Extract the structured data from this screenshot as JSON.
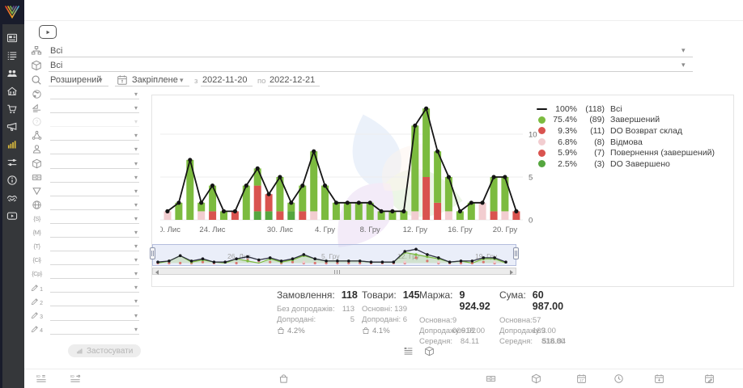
{
  "colors": {
    "accent_yellow": "#d9b93d",
    "green": "#7cbb3f",
    "dark_green": "#55a63f",
    "red": "#d9534f",
    "pink": "#f2cdd0",
    "total_line": "#141414",
    "sidebar_bg": "#35373a",
    "logo_bg": "#191c2b",
    "navigator_fill": "#dde2f4"
  },
  "sidebar": {
    "items": [
      {
        "icon": "media-card-icon"
      },
      {
        "icon": "list-icon"
      },
      {
        "icon": "users-icon"
      },
      {
        "icon": "home-users-icon"
      },
      {
        "icon": "cart-icon"
      },
      {
        "icon": "megaphone-icon"
      },
      {
        "icon": "bar-chart-icon",
        "active": true
      },
      {
        "icon": "sliders-icon"
      },
      {
        "icon": "info-icon"
      },
      {
        "icon": "handshake-icon"
      },
      {
        "icon": "video-icon"
      }
    ]
  },
  "topbar": {
    "filters": [
      {
        "icon": "status-tree-icon",
        "value": "Всі"
      },
      {
        "icon": "product-cube-icon",
        "value": "Всі"
      }
    ],
    "search_mode": "Розширений",
    "period_mode": "Закріплене",
    "from_label": "з",
    "date_from": "2022-11-20",
    "to_label": "по",
    "date_to": "2022-12-21"
  },
  "filter_panel": {
    "apply_label": "Застосувати",
    "rows": [
      {
        "icon": "globe-icon"
      },
      {
        "icon": "stage-icon"
      },
      {
        "icon": "question-icon",
        "dim": true
      },
      {
        "icon": "hierarchy-icon"
      },
      {
        "icon": "person-icon"
      },
      {
        "icon": "cube-icon"
      },
      {
        "icon": "money-icon"
      },
      {
        "icon": "funnel-icon"
      },
      {
        "icon": "globe-grid-icon"
      },
      {
        "glyph": "{S}"
      },
      {
        "glyph": "{М}"
      },
      {
        "glyph": "{Т}"
      },
      {
        "glyph": "{Сі}"
      },
      {
        "glyph": "{Ср}"
      },
      {
        "icon": "pencil-icon",
        "sub": "1"
      },
      {
        "icon": "pencil-icon",
        "sub": "2"
      },
      {
        "icon": "pencil-icon",
        "sub": "3"
      },
      {
        "icon": "pencil-icon",
        "sub": "4"
      }
    ]
  },
  "legend": {
    "items": [
      {
        "marker": "line",
        "color": "#141414",
        "pct": "100%",
        "count": "(118)",
        "label": "Всі"
      },
      {
        "marker": "dot",
        "color": "#7cbb3f",
        "pct": "75.4%",
        "count": "(89)",
        "label": "Завершений"
      },
      {
        "marker": "dot",
        "color": "#d9534f",
        "pct": "9.3%",
        "count": "(11)",
        "label": "DO Возврат склад"
      },
      {
        "marker": "dot",
        "color": "#f2cdd0",
        "pct": "6.8%",
        "count": "(8)",
        "label": "Відмова"
      },
      {
        "marker": "dot",
        "color": "#d9534f",
        "pct": "5.9%",
        "count": "(7)",
        "label": "Повернення (завершений)"
      },
      {
        "marker": "dot",
        "color": "#55a63f",
        "pct": "2.5%",
        "count": "(3)",
        "label": "DO Завершено"
      }
    ]
  },
  "chart_data": {
    "type": "bar",
    "subtype": "stacked bars with total line overlay, daily orders",
    "start_date": "2022-11-20",
    "end_date": "2022-12-21",
    "x_ticks": [
      {
        "index": 0,
        "label": "20. Лис"
      },
      {
        "index": 4,
        "label": "24. Лис"
      },
      {
        "index": 10,
        "label": "30. Лис"
      },
      {
        "index": 14,
        "label": "4. Гру"
      },
      {
        "index": 18,
        "label": "8. Гру"
      },
      {
        "index": 22,
        "label": "12. Гру"
      },
      {
        "index": 26,
        "label": "16. Гру"
      },
      {
        "index": 30,
        "label": "20. Гру"
      }
    ],
    "y_ticks": [
      0,
      5,
      10
    ],
    "ylim": [
      0,
      15
    ],
    "legend_position": "right",
    "series": [
      {
        "name": "DO Завершено",
        "color": "#55a63f",
        "values": [
          0,
          0,
          0,
          0,
          0,
          0,
          0,
          0,
          1,
          1,
          0,
          1,
          0,
          0,
          0,
          0,
          0,
          0,
          0,
          0,
          0,
          0,
          0,
          0,
          0,
          0,
          0,
          0,
          0,
          0,
          0,
          0
        ]
      },
      {
        "name": "DO Возврат склад + Повернення (завершений)",
        "color": "#d9534f",
        "values": [
          0,
          0,
          0,
          0,
          1,
          0,
          1,
          0,
          3,
          2,
          1,
          0,
          1,
          0,
          0,
          0,
          0,
          0,
          0,
          0,
          0,
          0,
          0,
          5,
          2,
          0,
          0,
          0,
          0,
          1,
          0,
          1
        ]
      },
      {
        "name": "Відмова",
        "color": "#f2cdd0",
        "values": [
          1,
          0,
          0,
          1,
          0,
          0,
          0,
          0,
          0,
          0,
          0,
          0,
          0,
          1,
          0,
          0,
          0,
          0,
          0,
          0,
          0,
          0,
          1,
          0,
          0,
          1,
          0,
          0,
          2,
          0,
          1,
          0
        ]
      },
      {
        "name": "Завершений",
        "color": "#7cbb3f",
        "values": [
          0,
          2,
          7,
          1,
          3,
          1,
          0,
          4,
          2,
          0,
          4,
          1,
          3,
          7,
          4,
          2,
          2,
          2,
          2,
          1,
          1,
          1,
          10,
          8,
          6,
          4,
          1,
          2,
          0,
          4,
          4,
          0
        ]
      }
    ],
    "line": {
      "name": "Всі",
      "color": "#141414",
      "values": [
        1,
        2,
        7,
        2,
        4,
        1,
        1,
        4,
        6,
        3,
        5,
        2,
        4,
        8,
        4,
        2,
        2,
        2,
        2,
        1,
        1,
        1,
        11,
        13,
        8,
        5,
        1,
        2,
        2,
        5,
        5,
        1
      ]
    },
    "navigator": {
      "range_labels": [
        "26. Лис",
        "5. Гру",
        "12. Гру",
        "19. Гру"
      ]
    }
  },
  "stats": {
    "columns": [
      {
        "title": "Замовлення:",
        "value": "118",
        "rows": [
          {
            "label": "Без допродажів:",
            "value": "113"
          },
          {
            "label": "Допродані:",
            "value": "5"
          }
        ],
        "rate": "4.2%"
      },
      {
        "title": "Товари:",
        "value": "145",
        "rows": [
          {
            "label": "Основні:",
            "value": "139"
          },
          {
            "label": "Допродані:",
            "value": "6"
          }
        ],
        "rate": "4.1%"
      },
      {
        "title": "Маржа:",
        "value": "9 924.92",
        "rows": [
          {
            "label": "Основна:",
            "value": "9 006.92"
          },
          {
            "label": "Допродажу:",
            "value": "918.00"
          },
          {
            "label": "Середня:",
            "value": "84.11"
          }
        ]
      },
      {
        "title": "Сума:",
        "value": "60 987.00",
        "rows": [
          {
            "label": "Основна:",
            "value": "57 169.00"
          },
          {
            "label": "Допродажу:",
            "value": "3 818.00"
          },
          {
            "label": "Середня:",
            "value": "516.84"
          }
        ]
      }
    ]
  },
  "view_toggle": {
    "icons": [
      "list-view-icon",
      "products-cube-icon"
    ]
  },
  "table_header": {
    "icons": [
      "id-lines-icon",
      "id-ref-icon",
      "bag-icon",
      "banknote-icon",
      "cube-icon",
      "calendar-date-icon",
      "clock-icon",
      "calendar-down-icon",
      "calendar-edit-icon"
    ]
  }
}
